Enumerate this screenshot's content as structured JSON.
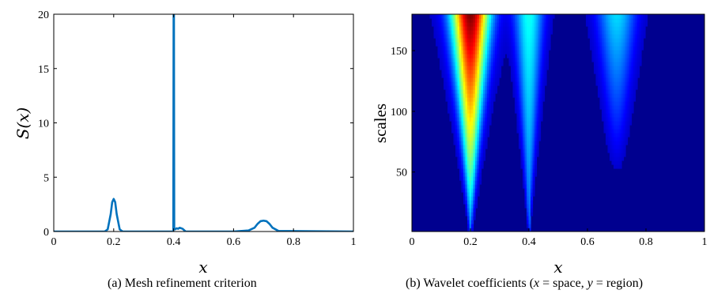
{
  "chart_data": [
    {
      "type": "line",
      "caption": "(a)  Mesh refinement criterion",
      "xlabel": "x",
      "ylabel": "S(x)",
      "xlim": [
        0,
        1
      ],
      "ylim": [
        0,
        20
      ],
      "xticks": [
        "0",
        "0.2",
        "0.4",
        "0.6",
        "0.8",
        "1"
      ],
      "yticks": [
        "0",
        "5",
        "10",
        "15",
        "20"
      ],
      "grid": false,
      "color": "#0072BD",
      "series": [
        {
          "x": [
            0,
            0.17,
            0.18,
            0.19,
            0.195,
            0.2,
            0.205,
            0.21,
            0.22,
            0.23,
            0.395,
            0.399,
            0.4,
            0.401,
            0.402,
            0.405,
            0.41,
            0.415,
            0.42,
            0.425,
            0.43,
            0.44,
            0.6,
            0.65,
            0.67,
            0.68,
            0.69,
            0.7,
            0.71,
            0.72,
            0.73,
            0.75,
            1
          ],
          "y": [
            0,
            0,
            0.2,
            1.6,
            2.7,
            3.0,
            2.7,
            1.6,
            0.2,
            0,
            0,
            0,
            20,
            20,
            0.25,
            0.2,
            0.3,
            0.25,
            0.35,
            0.3,
            0.25,
            0,
            0,
            0.1,
            0.35,
            0.7,
            0.95,
            1.0,
            0.95,
            0.7,
            0.35,
            0.05,
            0
          ]
        }
      ]
    },
    {
      "type": "heatmap",
      "caption_prefix": "(b)  Wavelet coefficients (",
      "caption_x": "x",
      "caption_mid1": " =  space, ",
      "caption_y": "y",
      "caption_mid2": " =  region)",
      "xlabel": "x",
      "ylabel": "scales",
      "xlim": [
        0,
        1
      ],
      "ylim": [
        1,
        180
      ],
      "xticks": [
        "0",
        "0.2",
        "0.4",
        "0.6",
        "0.8",
        "1"
      ],
      "yticks": [
        "50",
        "100",
        "150"
      ],
      "colormap": "jet",
      "features": [
        {
          "center": 0.2,
          "intensity": 1.0
        },
        {
          "center": 0.4,
          "intensity": 0.35
        },
        {
          "center": 0.7,
          "intensity": 0.3
        }
      ]
    }
  ]
}
